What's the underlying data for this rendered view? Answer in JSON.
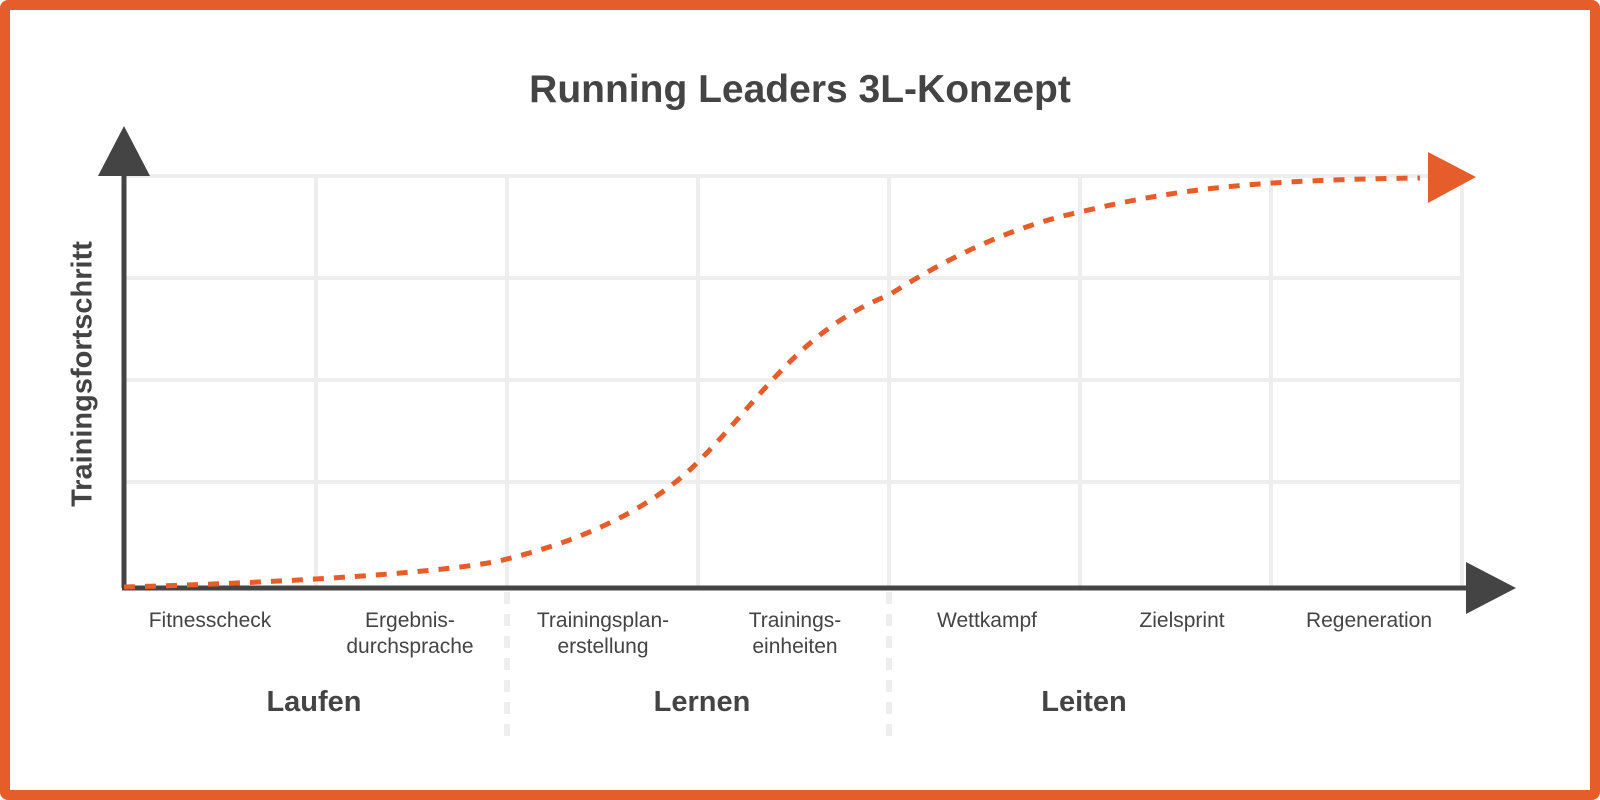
{
  "title": "Running Leaders 3L-Konzept",
  "y_axis_label": "Trainingsfortschritt",
  "steps": [
    {
      "label": "Fitnesscheck"
    },
    {
      "label": "Ergebnis-\ndurchsprache"
    },
    {
      "label": "Trainingsplan-\nerstellung"
    },
    {
      "label": "Trainings-\neinheiten"
    },
    {
      "label": "Wettkampf"
    },
    {
      "label": "Zielsprint"
    },
    {
      "label": "Regeneration"
    }
  ],
  "phases": [
    {
      "label": "Laufen"
    },
    {
      "label": "Lernen"
    },
    {
      "label": "Leiten"
    }
  ],
  "colors": {
    "accent": "#e55d2b",
    "axis": "#444444",
    "grid": "#eeeeee",
    "text": "#444444"
  }
}
